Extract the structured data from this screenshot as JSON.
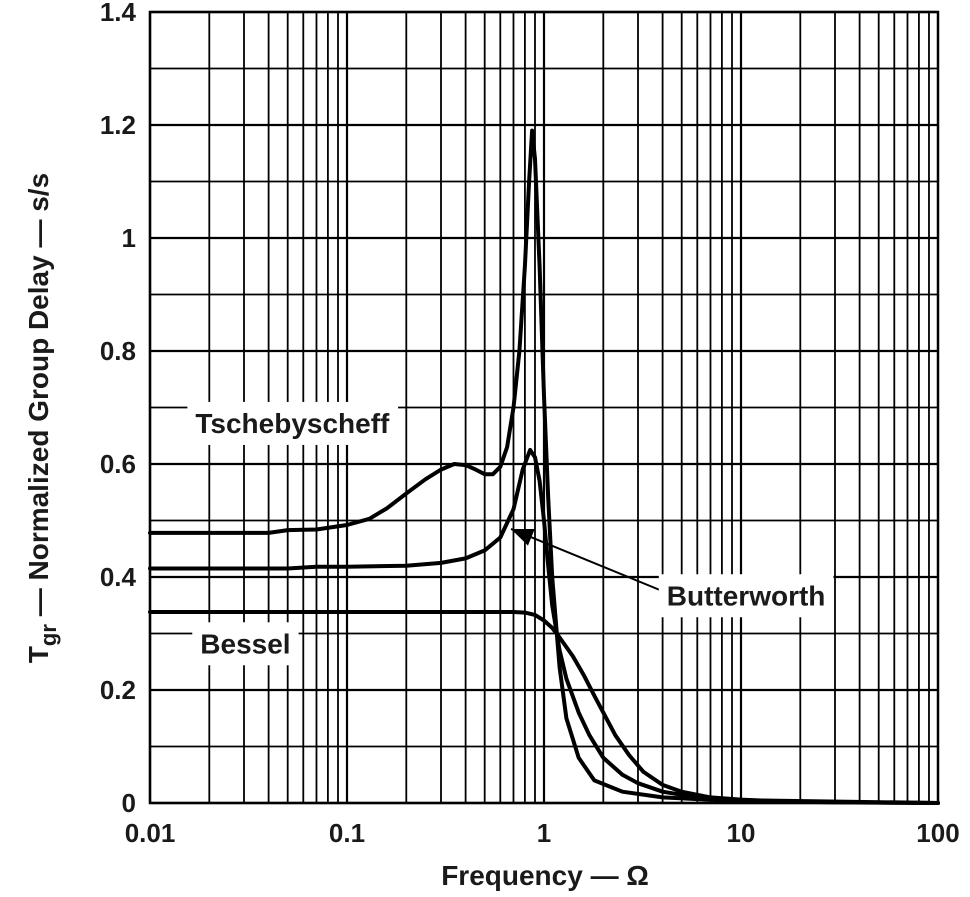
{
  "chart_data": {
    "type": "line",
    "xscale": "log",
    "xlim": [
      0.01,
      100
    ],
    "ylim": [
      0,
      1.4
    ],
    "grid": true,
    "xlabel": "Frequency — Ω",
    "ylabel_main": "T",
    "ylabel_sub": "gr",
    "ylabel_rest": " — Normalized Group Delay — s/s",
    "x_ticks": [
      {
        "value": 0.01,
        "label": "0.01"
      },
      {
        "value": 0.1,
        "label": "0.1"
      },
      {
        "value": 1,
        "label": "1"
      },
      {
        "value": 10,
        "label": "10"
      },
      {
        "value": 100,
        "label": "100"
      }
    ],
    "y_ticks": [
      {
        "value": 0,
        "label": "0"
      },
      {
        "value": 0.2,
        "label": "0.2"
      },
      {
        "value": 0.4,
        "label": "0.4"
      },
      {
        "value": 0.6,
        "label": "0.6"
      },
      {
        "value": 0.8,
        "label": "0.8"
      },
      {
        "value": 1.0,
        "label": "1"
      },
      {
        "value": 1.2,
        "label": "1.2"
      },
      {
        "value": 1.4,
        "label": "1.4"
      }
    ],
    "series": [
      {
        "name": "Tschebyscheff",
        "label_at": {
          "x": 0.017,
          "y": 0.655
        },
        "points": [
          [
            0.01,
            0.478
          ],
          [
            0.04,
            0.478
          ],
          [
            0.05,
            0.483
          ],
          [
            0.07,
            0.484
          ],
          [
            0.1,
            0.492
          ],
          [
            0.13,
            0.503
          ],
          [
            0.16,
            0.522
          ],
          [
            0.2,
            0.548
          ],
          [
            0.25,
            0.573
          ],
          [
            0.3,
            0.59
          ],
          [
            0.35,
            0.6
          ],
          [
            0.4,
            0.598
          ],
          [
            0.45,
            0.59
          ],
          [
            0.5,
            0.582
          ],
          [
            0.55,
            0.582
          ],
          [
            0.6,
            0.595
          ],
          [
            0.65,
            0.63
          ],
          [
            0.7,
            0.7
          ],
          [
            0.75,
            0.8
          ],
          [
            0.8,
            0.95
          ],
          [
            0.84,
            1.1
          ],
          [
            0.87,
            1.19
          ],
          [
            0.9,
            1.14
          ],
          [
            0.95,
            0.95
          ],
          [
            1.0,
            0.72
          ],
          [
            1.05,
            0.54
          ],
          [
            1.1,
            0.4
          ],
          [
            1.2,
            0.24
          ],
          [
            1.3,
            0.15
          ],
          [
            1.5,
            0.08
          ],
          [
            1.8,
            0.04
          ],
          [
            2.5,
            0.02
          ],
          [
            4,
            0.01
          ],
          [
            10,
            0.003
          ],
          [
            100,
            0
          ]
        ]
      },
      {
        "name": "Butterworth",
        "label_at": {
          "x": 4.2,
          "y": 0.35
        },
        "arrow_from": {
          "x": 4.0,
          "y": 0.375
        },
        "arrow_to": {
          "x": 0.68,
          "y": 0.485
        },
        "points": [
          [
            0.01,
            0.415
          ],
          [
            0.05,
            0.415
          ],
          [
            0.07,
            0.418
          ],
          [
            0.1,
            0.418
          ],
          [
            0.2,
            0.42
          ],
          [
            0.3,
            0.425
          ],
          [
            0.4,
            0.433
          ],
          [
            0.5,
            0.447
          ],
          [
            0.6,
            0.47
          ],
          [
            0.7,
            0.52
          ],
          [
            0.78,
            0.59
          ],
          [
            0.85,
            0.625
          ],
          [
            0.9,
            0.612
          ],
          [
            0.95,
            0.57
          ],
          [
            1.0,
            0.5
          ],
          [
            1.05,
            0.42
          ],
          [
            1.1,
            0.35
          ],
          [
            1.2,
            0.27
          ],
          [
            1.3,
            0.22
          ],
          [
            1.5,
            0.16
          ],
          [
            1.7,
            0.12
          ],
          [
            2.0,
            0.08
          ],
          [
            2.5,
            0.05
          ],
          [
            3,
            0.035
          ],
          [
            4,
            0.02
          ],
          [
            6,
            0.01
          ],
          [
            10,
            0.005
          ],
          [
            100,
            0
          ]
        ]
      },
      {
        "name": "Bessel",
        "label_at": {
          "x": 0.018,
          "y": 0.265
        },
        "points": [
          [
            0.01,
            0.338
          ],
          [
            0.1,
            0.338
          ],
          [
            0.3,
            0.338
          ],
          [
            0.5,
            0.338
          ],
          [
            0.7,
            0.338
          ],
          [
            0.8,
            0.337
          ],
          [
            0.9,
            0.333
          ],
          [
            1.0,
            0.323
          ],
          [
            1.1,
            0.31
          ],
          [
            1.2,
            0.293
          ],
          [
            1.4,
            0.26
          ],
          [
            1.6,
            0.225
          ],
          [
            1.8,
            0.19
          ],
          [
            2.0,
            0.16
          ],
          [
            2.3,
            0.12
          ],
          [
            2.7,
            0.085
          ],
          [
            3.2,
            0.055
          ],
          [
            4,
            0.032
          ],
          [
            5,
            0.02
          ],
          [
            7,
            0.01
          ],
          [
            10,
            0.006
          ],
          [
            15,
            0.003
          ],
          [
            30,
            0.001
          ],
          [
            100,
            0
          ]
        ]
      }
    ]
  }
}
